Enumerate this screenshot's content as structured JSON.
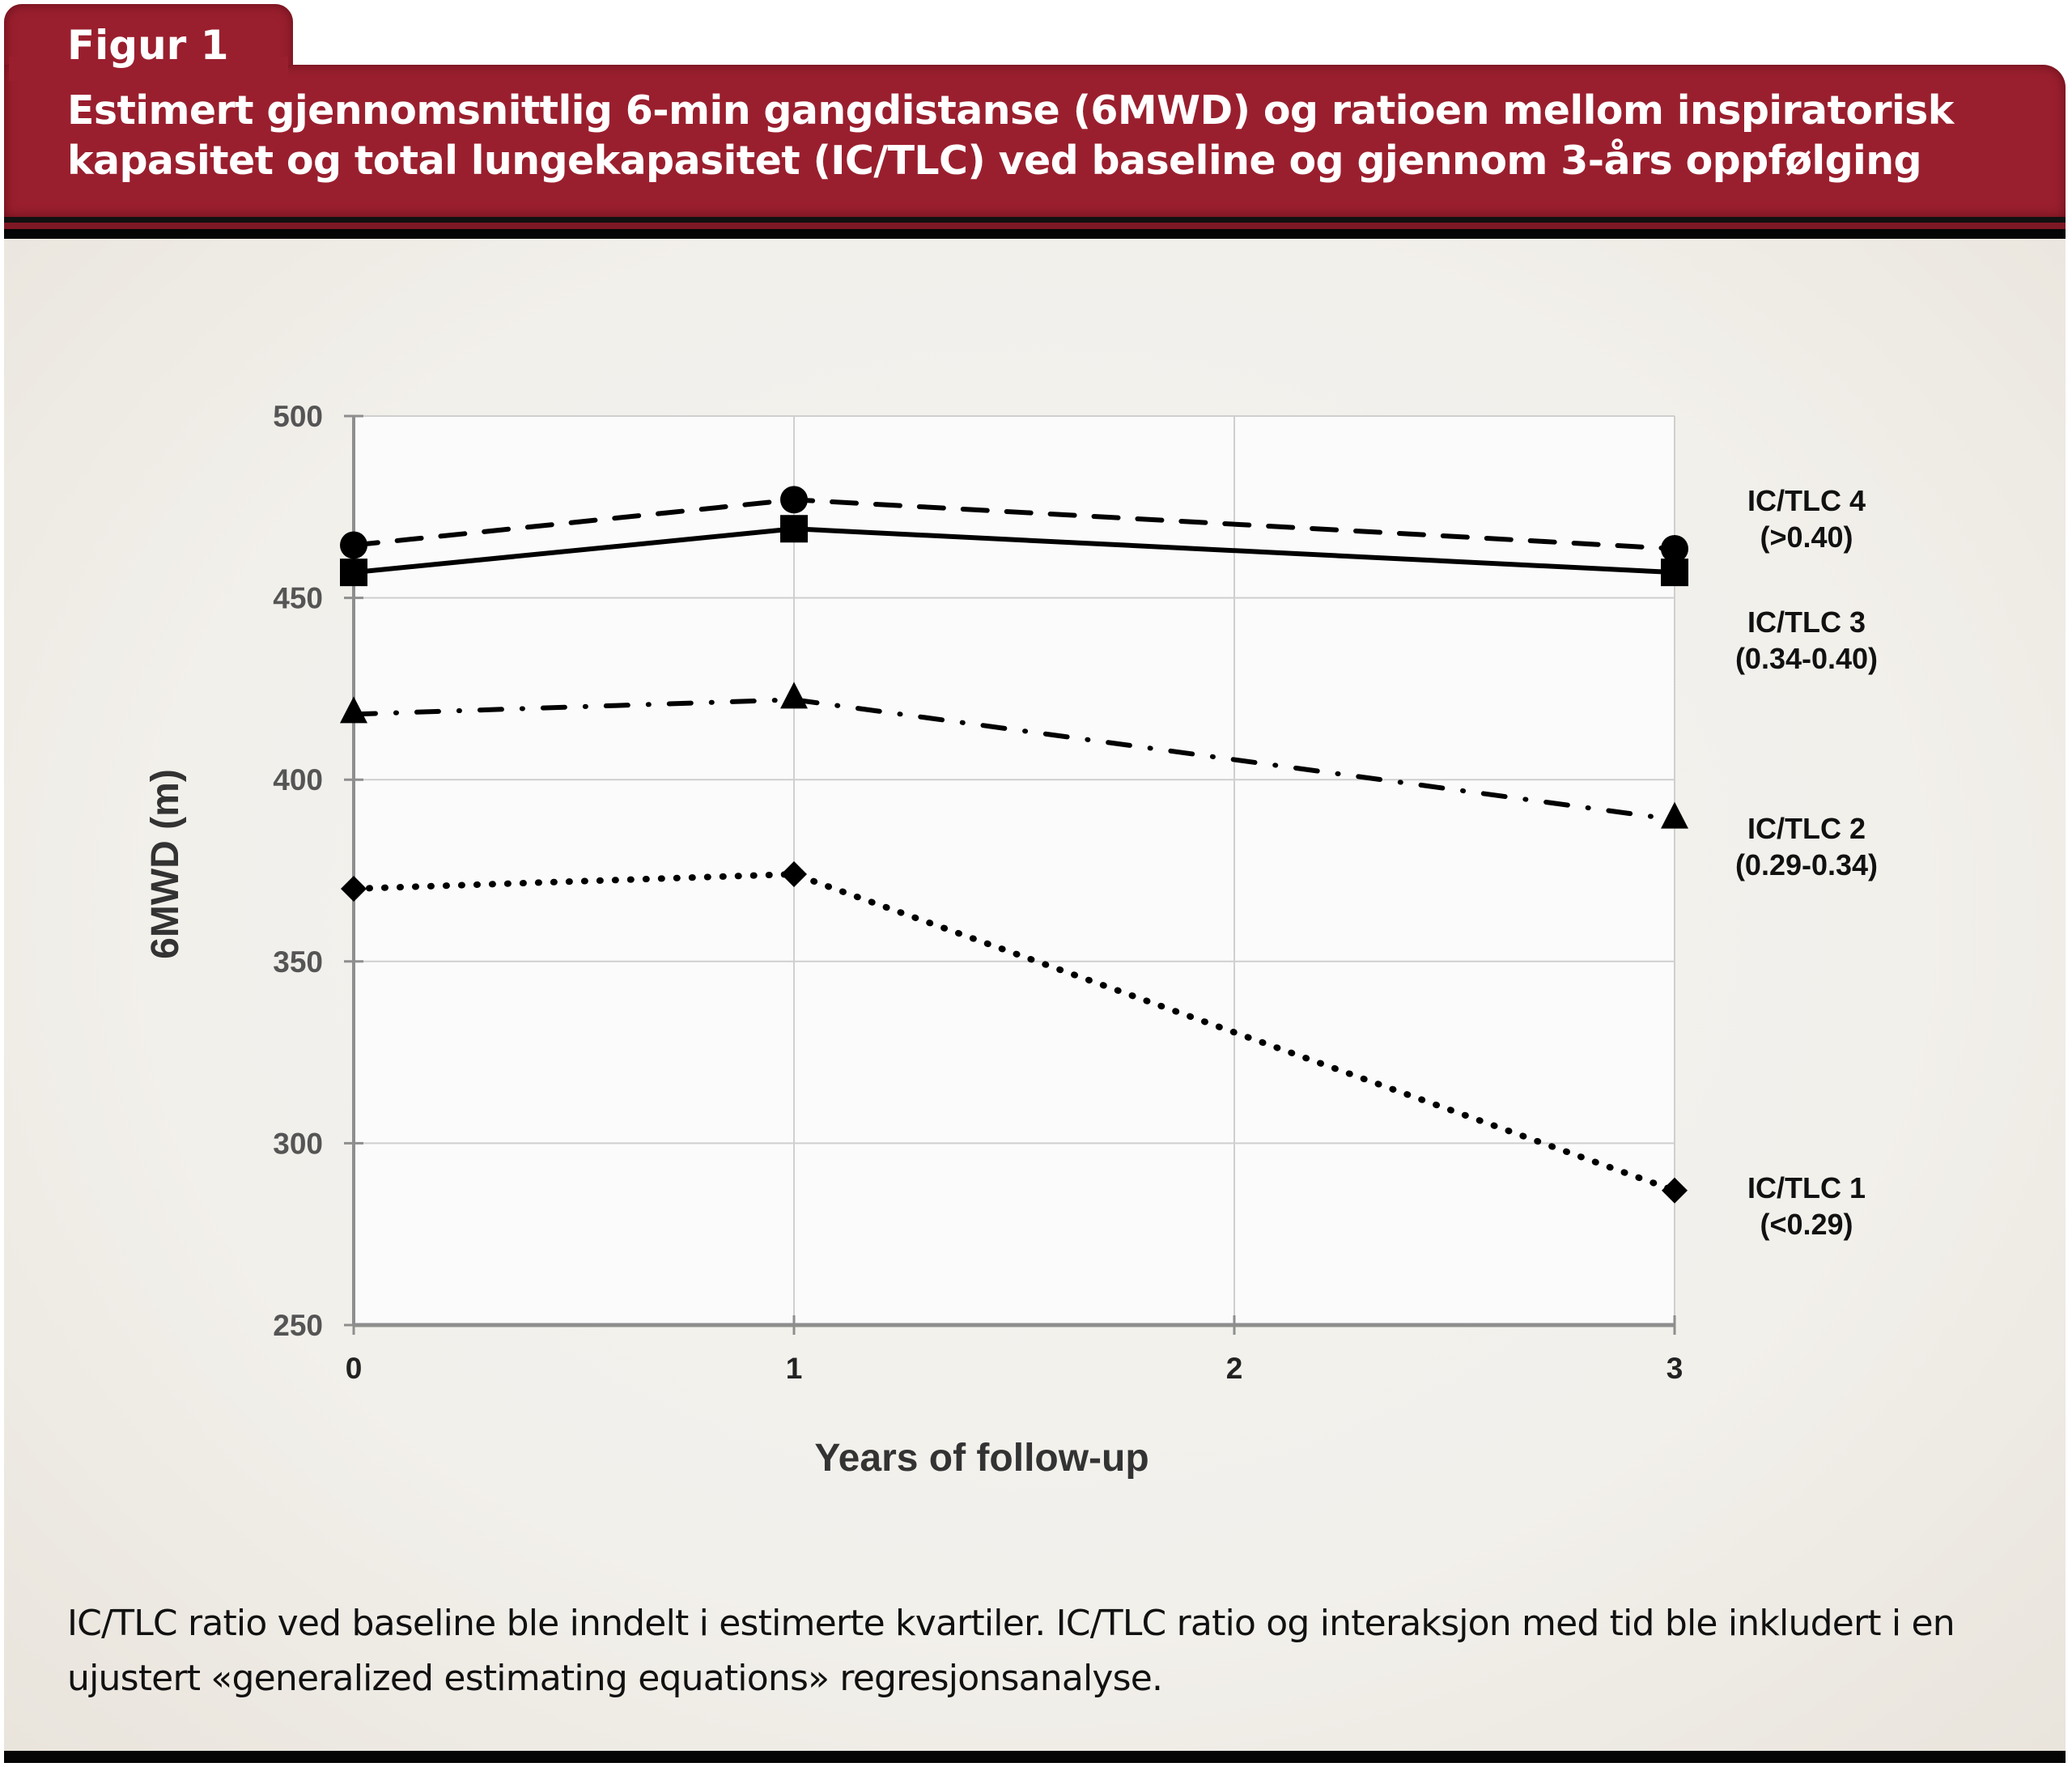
{
  "header": {
    "figure_label": "Figur 1",
    "title": "Estimert gjennomsnittlig 6-min gangdistanse (6MWD) og ratioen mellom inspiratorisk kapasitet og total lungekapasitet (IC/TLC) ved baseline og gjennom 3-års oppfølging"
  },
  "colors": {
    "header_red": "#9a1f2e",
    "panel_beige": "#f2f0eb",
    "plot_background": "#fbfbfb",
    "gridline": "#cccccc",
    "axis": "#999999",
    "series": "#000000"
  },
  "chart_data": {
    "type": "line",
    "title": "",
    "xlabel": "Years of follow-up",
    "ylabel": "6MWD (m)",
    "x": [
      0,
      1,
      3
    ],
    "xlim": [
      0,
      3
    ],
    "ylim": [
      250,
      500
    ],
    "x_ticks": [
      "0",
      "1",
      "2",
      "3"
    ],
    "y_ticks": [
      "250",
      "300",
      "350",
      "400",
      "450",
      "500"
    ],
    "grid": true,
    "legend_placement": "right (inline labels next to line ends)",
    "series": [
      {
        "name": "IC/TLC 4",
        "range": "(>0.40)",
        "marker": "circle",
        "line_style": "dashed",
        "values": [
          464.5,
          477,
          463.5
        ]
      },
      {
        "name": "IC/TLC 3",
        "range": "(0.34-0.40)",
        "marker": "square",
        "line_style": "solid",
        "values": [
          457,
          469,
          457
        ]
      },
      {
        "name": "IC/TLC 2",
        "range": "(0.29-0.34)",
        "marker": "triangle",
        "line_style": "dash-dot",
        "values": [
          418,
          422,
          389
        ]
      },
      {
        "name": "IC/TLC 1",
        "range": "(<0.29)",
        "marker": "diamond",
        "line_style": "dotted",
        "values": [
          370,
          374,
          287
        ]
      }
    ]
  },
  "caption": "IC/TLC ratio ved baseline ble inndelt i estimerte kvartiler. IC/TLC ratio og interaksjon med tid ble inkludert i en ujustert «generalized estimating equations» regresjonsanalyse."
}
